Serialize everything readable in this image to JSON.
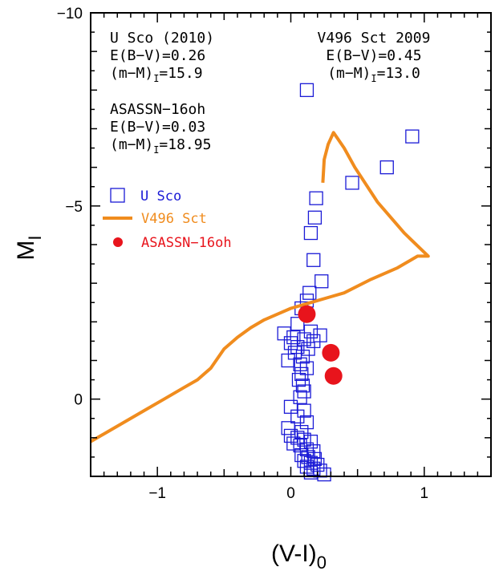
{
  "chart_data": {
    "type": "scatter",
    "title": "",
    "xlabel": "(V-I)",
    "xlabel_sub": "0",
    "ylabel": "M",
    "ylabel_sub": "I",
    "xlim": [
      -1.5,
      1.5
    ],
    "ylim": [
      2.0,
      -10.0
    ],
    "x_ticks": [
      -1,
      0,
      1
    ],
    "x_tick_labels": [
      "−1",
      "0",
      "1"
    ],
    "y_ticks": [
      0,
      -5,
      -10
    ],
    "y_tick_labels": [
      "0",
      "−5",
      "−10"
    ],
    "grid": false,
    "legend_position": "middle-left",
    "annotations": {
      "left": [
        {
          "lines": [
            [
              "U Sco (2010)"
            ],
            [
              "E(B−V)=0.26"
            ],
            [
              "(m−M)",
              "I",
              "=15.9"
            ]
          ]
        },
        {
          "lines": [
            [
              "ASASSN−16oh"
            ],
            [
              "E(B−V)=0.03"
            ],
            [
              "(m−M)",
              "I",
              "=18.95"
            ]
          ]
        }
      ],
      "right": [
        {
          "lines": [
            [
              "V496 Sct 2009"
            ],
            [
              "E(B−V)=0.45"
            ],
            [
              "(m−M)",
              "I",
              "=13.0"
            ]
          ]
        }
      ]
    },
    "series": [
      {
        "name": "U Sco",
        "marker": "open-square",
        "color": "#1a1ad6",
        "points": [
          [
            0.12,
            -8.0
          ],
          [
            0.91,
            -6.8
          ],
          [
            0.72,
            -6.0
          ],
          [
            0.46,
            -5.6
          ],
          [
            0.19,
            -5.2
          ],
          [
            0.18,
            -4.7
          ],
          [
            0.15,
            -4.3
          ],
          [
            0.17,
            -3.6
          ],
          [
            0.23,
            -3.05
          ],
          [
            0.14,
            -2.75
          ],
          [
            0.12,
            -2.55
          ],
          [
            0.08,
            -2.35
          ],
          [
            0.05,
            -1.95
          ],
          [
            0.15,
            -1.75
          ],
          [
            0.22,
            -1.65
          ],
          [
            -0.05,
            -1.7
          ],
          [
            0.02,
            -1.6
          ],
          [
            0.1,
            -1.55
          ],
          [
            0.17,
            -1.5
          ],
          [
            0.0,
            -1.45
          ],
          [
            0.05,
            -1.35
          ],
          [
            0.13,
            -1.3
          ],
          [
            0.03,
            -1.2
          ],
          [
            0.09,
            -1.1
          ],
          [
            -0.02,
            -1.0
          ],
          [
            0.07,
            -0.9
          ],
          [
            0.12,
            -0.8
          ],
          [
            0.08,
            -0.65
          ],
          [
            0.06,
            -0.5
          ],
          [
            0.09,
            -0.35
          ],
          [
            0.1,
            -0.2
          ],
          [
            0.07,
            -0.05
          ],
          [
            0.0,
            0.2
          ],
          [
            0.1,
            0.3
          ],
          [
            0.05,
            0.45
          ],
          [
            0.12,
            0.6
          ],
          [
            -0.02,
            0.75
          ],
          [
            0.08,
            0.85
          ],
          [
            0.0,
            0.95
          ],
          [
            0.05,
            1.0
          ],
          [
            0.1,
            1.05
          ],
          [
            0.15,
            1.1
          ],
          [
            0.02,
            1.15
          ],
          [
            0.07,
            1.2
          ],
          [
            0.12,
            1.3
          ],
          [
            0.17,
            1.35
          ],
          [
            0.08,
            1.45
          ],
          [
            0.13,
            1.5
          ],
          [
            0.18,
            1.55
          ],
          [
            0.1,
            1.6
          ],
          [
            0.15,
            1.65
          ],
          [
            0.2,
            1.7
          ],
          [
            0.12,
            1.75
          ],
          [
            0.17,
            1.8
          ],
          [
            0.22,
            1.85
          ],
          [
            0.15,
            1.9
          ],
          [
            0.25,
            1.95
          ]
        ]
      },
      {
        "name": "V496 Sct",
        "marker": "line",
        "color": "#f08c1e",
        "points": [
          [
            -1.5,
            1.1
          ],
          [
            -1.3,
            0.7
          ],
          [
            -1.1,
            0.3
          ],
          [
            -0.95,
            0.0
          ],
          [
            -0.8,
            -0.3
          ],
          [
            -0.7,
            -0.5
          ],
          [
            -0.6,
            -0.8
          ],
          [
            -0.5,
            -1.3
          ],
          [
            -0.4,
            -1.6
          ],
          [
            -0.3,
            -1.85
          ],
          [
            -0.2,
            -2.05
          ],
          [
            -0.1,
            -2.2
          ],
          [
            0.0,
            -2.35
          ],
          [
            0.1,
            -2.45
          ],
          [
            0.2,
            -2.55
          ],
          [
            0.3,
            -2.65
          ],
          [
            0.4,
            -2.75
          ],
          [
            0.6,
            -3.1
          ],
          [
            0.8,
            -3.4
          ],
          [
            0.95,
            -3.7
          ],
          [
            1.03,
            -3.7
          ],
          [
            0.85,
            -4.3
          ],
          [
            0.65,
            -5.1
          ],
          [
            0.48,
            -6.0
          ],
          [
            0.4,
            -6.5
          ],
          [
            0.35,
            -6.75
          ],
          [
            0.32,
            -6.9
          ],
          [
            0.28,
            -6.6
          ],
          [
            0.25,
            -6.2
          ],
          [
            0.24,
            -5.6
          ]
        ]
      },
      {
        "name": "ASASSN−16oh",
        "marker": "filled-circle",
        "color": "#e8141c",
        "points": [
          [
            0.12,
            -2.2
          ],
          [
            0.3,
            -1.2
          ],
          [
            0.32,
            -0.6
          ]
        ]
      }
    ]
  }
}
